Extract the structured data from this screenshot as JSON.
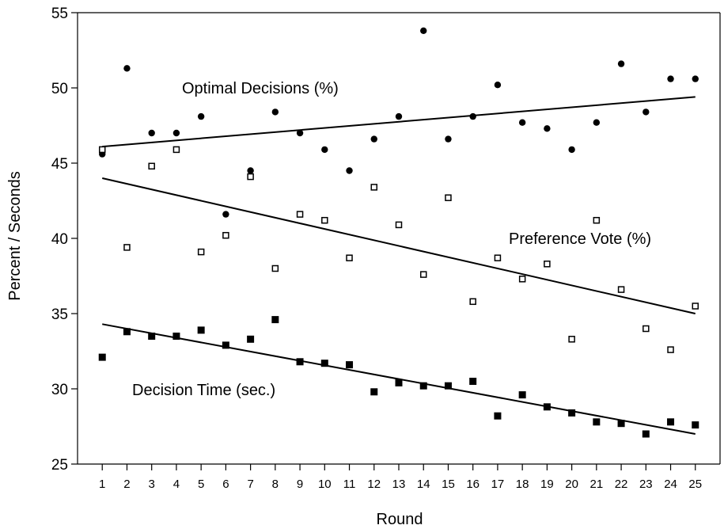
{
  "chart_data": {
    "type": "scatter",
    "xlabel": "Round",
    "ylabel": "Percent / Seconds",
    "x": [
      1,
      2,
      3,
      4,
      5,
      6,
      7,
      8,
      9,
      10,
      11,
      12,
      13,
      14,
      15,
      16,
      17,
      18,
      19,
      20,
      21,
      22,
      23,
      24,
      25
    ],
    "xlim": [
      0,
      26
    ],
    "ylim": [
      25,
      55
    ],
    "yticks": [
      25,
      30,
      35,
      40,
      45,
      50,
      55
    ],
    "grid": false,
    "legend": "none",
    "series": [
      {
        "name": "Optimal Decisions (%)",
        "marker": "filled-circle",
        "values": [
          45.6,
          51.3,
          47.0,
          47.0,
          48.1,
          41.6,
          44.5,
          48.4,
          47.0,
          45.9,
          44.5,
          46.6,
          48.1,
          53.8,
          46.6,
          48.1,
          50.2,
          47.7,
          47.3,
          45.9,
          47.7,
          51.6,
          48.4,
          50.6,
          50.6
        ],
        "trend": [
          46.1,
          49.4
        ]
      },
      {
        "name": "Preference Vote (%)",
        "marker": "open-square",
        "values": [
          45.9,
          39.4,
          44.8,
          45.9,
          39.1,
          40.2,
          44.1,
          38.0,
          41.6,
          41.2,
          38.7,
          43.4,
          40.9,
          37.6,
          42.7,
          35.8,
          38.7,
          37.3,
          38.3,
          33.3,
          41.2,
          36.6,
          34.0,
          32.6,
          35.5
        ],
        "trend": [
          44.0,
          35.0
        ]
      },
      {
        "name": "Decision Time (sec.)",
        "marker": "filled-square",
        "values": [
          32.1,
          33.8,
          33.5,
          33.5,
          33.9,
          32.9,
          33.3,
          34.6,
          31.8,
          31.7,
          31.6,
          29.8,
          30.4,
          30.2,
          30.2,
          30.5,
          28.2,
          29.6,
          28.8,
          28.4,
          27.8,
          27.7,
          27.0,
          27.8,
          27.6
        ],
        "trend": [
          34.3,
          27.0
        ]
      }
    ]
  }
}
